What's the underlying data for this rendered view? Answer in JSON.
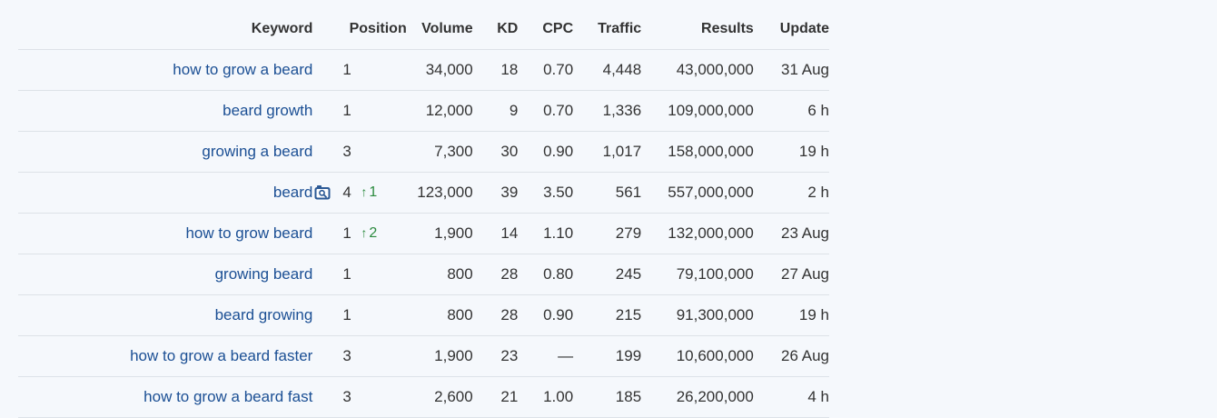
{
  "headers": {
    "keyword": "Keyword",
    "position": "Position",
    "volume": "Volume",
    "kd": "KD",
    "cpc": "CPC",
    "traffic": "Traffic",
    "results": "Results",
    "update": "Update"
  },
  "rows": [
    {
      "keyword": "how to grow a beard",
      "position": "1",
      "change": "",
      "serp_icon": false,
      "volume": "34,000",
      "kd": "18",
      "cpc": "0.70",
      "traffic": "4,448",
      "results": "43,000,000",
      "update": "31 Aug"
    },
    {
      "keyword": "beard growth",
      "position": "1",
      "change": "",
      "serp_icon": false,
      "volume": "12,000",
      "kd": "9",
      "cpc": "0.70",
      "traffic": "1,336",
      "results": "109,000,000",
      "update": "6 h"
    },
    {
      "keyword": "growing a beard",
      "position": "3",
      "change": "",
      "serp_icon": false,
      "volume": "7,300",
      "kd": "30",
      "cpc": "0.90",
      "traffic": "1,017",
      "results": "158,000,000",
      "update": "19 h"
    },
    {
      "keyword": "beard",
      "position": "4",
      "change": "1",
      "serp_icon": true,
      "volume": "123,000",
      "kd": "39",
      "cpc": "3.50",
      "traffic": "561",
      "results": "557,000,000",
      "update": "2 h"
    },
    {
      "keyword": "how to grow beard",
      "position": "1",
      "change": "2",
      "serp_icon": false,
      "volume": "1,900",
      "kd": "14",
      "cpc": "1.10",
      "traffic": "279",
      "results": "132,000,000",
      "update": "23 Aug"
    },
    {
      "keyword": "growing beard",
      "position": "1",
      "change": "",
      "serp_icon": false,
      "volume": "800",
      "kd": "28",
      "cpc": "0.80",
      "traffic": "245",
      "results": "79,100,000",
      "update": "27 Aug"
    },
    {
      "keyword": "beard growing",
      "position": "1",
      "change": "",
      "serp_icon": false,
      "volume": "800",
      "kd": "28",
      "cpc": "0.90",
      "traffic": "215",
      "results": "91,300,000",
      "update": "19 h"
    },
    {
      "keyword": "how to grow a beard faster",
      "position": "3",
      "change": "",
      "serp_icon": false,
      "volume": "1,900",
      "kd": "23",
      "cpc": "—",
      "traffic": "199",
      "results": "10,600,000",
      "update": "26 Aug"
    },
    {
      "keyword": "how to grow a beard fast",
      "position": "3",
      "change": "",
      "serp_icon": false,
      "volume": "2,600",
      "kd": "21",
      "cpc": "1.00",
      "traffic": "185",
      "results": "26,200,000",
      "update": "4 h"
    }
  ],
  "icons": {
    "serp_feature": "image-pack-icon",
    "position_up": "arrow-up-icon"
  },
  "colors": {
    "link": "#1b4f94",
    "position_up": "#2b8a3e",
    "serp_icon": "#2c5a96",
    "background": "#f5f8fc"
  }
}
